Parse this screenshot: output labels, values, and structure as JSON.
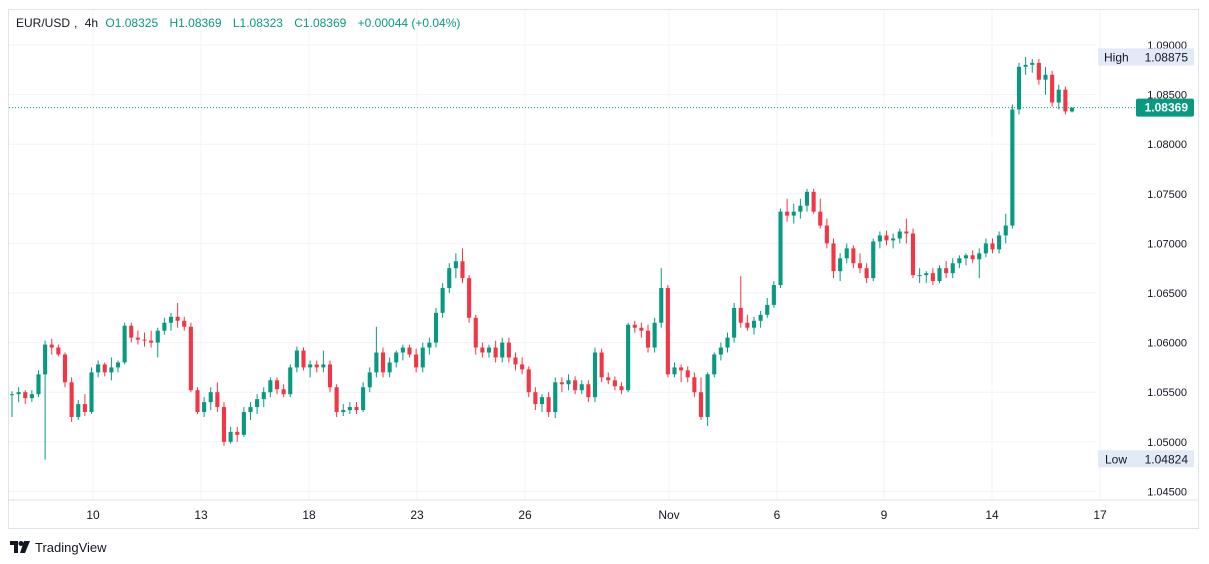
{
  "legend": {
    "symbol": "EUR/USD",
    "interval": "4h",
    "open": "O1.08325",
    "high": "H1.08369",
    "low": "L1.08323",
    "close": "C1.08369",
    "change": "+0.00044 (+0.04%)"
  },
  "brand": {
    "name": "TradingView",
    "icon": "tradingview-logo-icon"
  },
  "colors": {
    "up": "#089981",
    "down": "#f23645",
    "grid": "#f0f3fa",
    "axis_text": "#131722",
    "price_line": "#089981"
  },
  "chart_data": {
    "type": "candlestick",
    "symbol": "EUR/USD",
    "interval": "4h",
    "ylim": [
      1.0425,
      1.0925
    ],
    "y_ticks": [
      "1.09000",
      "1.08500",
      "1.08000",
      "1.07500",
      "1.07000",
      "1.06500",
      "1.06000",
      "1.05500",
      "1.05000",
      "1.04500"
    ],
    "x_ticks": [
      "10",
      "13",
      "18",
      "23",
      "26",
      "Nov",
      "6",
      "9",
      "14",
      "17"
    ],
    "price_labels": [
      {
        "label": "High",
        "value": "1.08875"
      },
      {
        "label": "",
        "value": "1.08369"
      },
      {
        "label": "Low",
        "value": "1.04824"
      }
    ],
    "last_price": 1.08369,
    "candles": [
      [
        1.0547,
        1.0551,
        1.0525,
        1.0548
      ],
      [
        1.0548,
        1.0555,
        1.054,
        1.055
      ],
      [
        1.055,
        1.0552,
        1.0538,
        1.0544
      ],
      [
        1.0544,
        1.0552,
        1.054,
        1.0548
      ],
      [
        1.0548,
        1.0572,
        1.0545,
        1.0568
      ],
      [
        1.0568,
        1.0602,
        1.0482,
        1.0598
      ],
      [
        1.0598,
        1.0604,
        1.0588,
        1.0595
      ],
      [
        1.0595,
        1.0598,
        1.0586,
        1.0588
      ],
      [
        1.0588,
        1.059,
        1.0555,
        1.056
      ],
      [
        1.056,
        1.0565,
        1.052,
        1.0525
      ],
      [
        1.0525,
        1.0542,
        1.0522,
        1.0538
      ],
      [
        1.0538,
        1.0548,
        1.0526,
        1.053
      ],
      [
        1.053,
        1.0575,
        1.0528,
        1.057
      ],
      [
        1.057,
        1.0582,
        1.0565,
        1.0578
      ],
      [
        1.0578,
        1.058,
        1.0566,
        1.057
      ],
      [
        1.057,
        1.0585,
        1.0562,
        1.0575
      ],
      [
        1.0575,
        1.0582,
        1.057,
        1.058
      ],
      [
        1.058,
        1.062,
        1.0578,
        1.0617
      ],
      [
        1.0617,
        1.062,
        1.06,
        1.0605
      ],
      [
        1.0605,
        1.0612,
        1.0598,
        1.0603
      ],
      [
        1.0603,
        1.061,
        1.0596,
        1.0602
      ],
      [
        1.0602,
        1.0612,
        1.0595,
        1.06
      ],
      [
        1.06,
        1.0615,
        1.0585,
        1.0612
      ],
      [
        1.0612,
        1.0625,
        1.0608,
        1.062
      ],
      [
        1.062,
        1.063,
        1.0612,
        1.0626
      ],
      [
        1.0626,
        1.064,
        1.0615,
        1.0622
      ],
      [
        1.0622,
        1.0626,
        1.0612,
        1.0616
      ],
      [
        1.0616,
        1.062,
        1.055,
        1.0552
      ],
      [
        1.0552,
        1.0555,
        1.0528,
        1.053
      ],
      [
        1.053,
        1.0545,
        1.0525,
        1.054
      ],
      [
        1.054,
        1.0555,
        1.0532,
        1.055
      ],
      [
        1.055,
        1.056,
        1.053,
        1.0535
      ],
      [
        1.0535,
        1.054,
        1.0496,
        1.05
      ],
      [
        1.05,
        1.0515,
        1.0498,
        1.051
      ],
      [
        1.051,
        1.0515,
        1.05,
        1.0507
      ],
      [
        1.0507,
        1.0535,
        1.0505,
        1.053
      ],
      [
        1.053,
        1.054,
        1.0522,
        1.0535
      ],
      [
        1.0535,
        1.0548,
        1.0528,
        1.0543
      ],
      [
        1.0543,
        1.0555,
        1.0535,
        1.055
      ],
      [
        1.055,
        1.0565,
        1.0545,
        1.0562
      ],
      [
        1.0562,
        1.0565,
        1.0548,
        1.0553
      ],
      [
        1.0553,
        1.0558,
        1.0545,
        1.0548
      ],
      [
        1.0548,
        1.0578,
        1.0545,
        1.0575
      ],
      [
        1.0575,
        1.0596,
        1.057,
        1.0592
      ],
      [
        1.0592,
        1.0595,
        1.0572,
        1.0575
      ],
      [
        1.0575,
        1.0582,
        1.0565,
        1.0578
      ],
      [
        1.0578,
        1.0582,
        1.057,
        1.0575
      ],
      [
        1.0575,
        1.0592,
        1.057,
        1.0578
      ],
      [
        1.0578,
        1.0582,
        1.055,
        1.0555
      ],
      [
        1.0555,
        1.0558,
        1.0525,
        1.053
      ],
      [
        1.053,
        1.0538,
        1.0526,
        1.0532
      ],
      [
        1.0532,
        1.054,
        1.0528,
        1.0535
      ],
      [
        1.0535,
        1.054,
        1.0528,
        1.0532
      ],
      [
        1.0532,
        1.056,
        1.053,
        1.0555
      ],
      [
        1.0555,
        1.0575,
        1.055,
        1.057
      ],
      [
        1.057,
        1.0616,
        1.0565,
        1.059
      ],
      [
        1.059,
        1.0595,
        1.0565,
        1.057
      ],
      [
        1.057,
        1.0585,
        1.0565,
        1.058
      ],
      [
        1.058,
        1.0592,
        1.0575,
        1.059
      ],
      [
        1.059,
        1.0598,
        1.0582,
        1.0595
      ],
      [
        1.0595,
        1.0598,
        1.0585,
        1.0588
      ],
      [
        1.0588,
        1.0594,
        1.057,
        1.0575
      ],
      [
        1.0575,
        1.06,
        1.057,
        1.0595
      ],
      [
        1.0595,
        1.0605,
        1.0588,
        1.06
      ],
      [
        1.06,
        1.0635,
        1.0595,
        1.063
      ],
      [
        1.063,
        1.066,
        1.0625,
        1.0655
      ],
      [
        1.0655,
        1.068,
        1.065,
        1.0675
      ],
      [
        1.0675,
        1.069,
        1.0665,
        1.0682
      ],
      [
        1.0682,
        1.0695,
        1.066,
        1.0665
      ],
      [
        1.0665,
        1.0668,
        1.062,
        1.0625
      ],
      [
        1.0625,
        1.0628,
        1.0588,
        1.0595
      ],
      [
        1.0595,
        1.06,
        1.0585,
        1.059
      ],
      [
        1.059,
        1.0598,
        1.0585,
        1.0595
      ],
      [
        1.0595,
        1.0602,
        1.058,
        1.0585
      ],
      [
        1.0585,
        1.0605,
        1.058,
        1.06
      ],
      [
        1.06,
        1.0605,
        1.058,
        1.0585
      ],
      [
        1.0585,
        1.059,
        1.0572,
        1.0578
      ],
      [
        1.0578,
        1.0585,
        1.0568,
        1.0573
      ],
      [
        1.0573,
        1.0576,
        1.0545,
        1.055
      ],
      [
        1.055,
        1.0555,
        1.0532,
        1.0538
      ],
      [
        1.0538,
        1.0548,
        1.053,
        1.0545
      ],
      [
        1.0545,
        1.055,
        1.0525,
        1.053
      ],
      [
        1.053,
        1.0565,
        1.0524,
        1.056
      ],
      [
        1.056,
        1.0565,
        1.055,
        1.0558
      ],
      [
        1.0558,
        1.0568,
        1.0552,
        1.0562
      ],
      [
        1.0562,
        1.0566,
        1.0548,
        1.0552
      ],
      [
        1.0552,
        1.0562,
        1.0548,
        1.0558
      ],
      [
        1.0558,
        1.0562,
        1.054,
        1.0545
      ],
      [
        1.0545,
        1.0595,
        1.054,
        1.059
      ],
      [
        1.059,
        1.0594,
        1.056,
        1.0565
      ],
      [
        1.0565,
        1.057,
        1.0558,
        1.0562
      ],
      [
        1.0562,
        1.0566,
        1.0552,
        1.0556
      ],
      [
        1.0556,
        1.056,
        1.0548,
        1.0552
      ],
      [
        1.0552,
        1.062,
        1.055,
        1.0618
      ],
      [
        1.0618,
        1.0622,
        1.061,
        1.0615
      ],
      [
        1.0615,
        1.062,
        1.0605,
        1.0612
      ],
      [
        1.0612,
        1.0618,
        1.059,
        1.0595
      ],
      [
        1.0595,
        1.0625,
        1.059,
        1.062
      ],
      [
        1.062,
        1.0675,
        1.0615,
        1.0655
      ],
      [
        1.0655,
        1.0658,
        1.0565,
        1.0568
      ],
      [
        1.0568,
        1.058,
        1.0565,
        1.0575
      ],
      [
        1.0575,
        1.0578,
        1.056,
        1.0572
      ],
      [
        1.0572,
        1.0576,
        1.056,
        1.0565
      ],
      [
        1.0565,
        1.057,
        1.0545,
        1.055
      ],
      [
        1.055,
        1.0565,
        1.0522,
        1.0525
      ],
      [
        1.0525,
        1.057,
        1.0516,
        1.0568
      ],
      [
        1.0568,
        1.059,
        1.0565,
        1.0588
      ],
      [
        1.0588,
        1.06,
        1.0582,
        1.0595
      ],
      [
        1.0595,
        1.061,
        1.059,
        1.0605
      ],
      [
        1.0605,
        1.064,
        1.06,
        1.0635
      ],
      [
        1.0635,
        1.0667,
        1.0615,
        1.062
      ],
      [
        1.062,
        1.0628,
        1.0612,
        1.0615
      ],
      [
        1.0615,
        1.0626,
        1.0608,
        1.0622
      ],
      [
        1.0622,
        1.0632,
        1.0615,
        1.0628
      ],
      [
        1.0628,
        1.0645,
        1.0625,
        1.0638
      ],
      [
        1.0638,
        1.0662,
        1.0635,
        1.0658
      ],
      [
        1.0658,
        1.0735,
        1.0655,
        1.0732
      ],
      [
        1.0732,
        1.0745,
        1.0722,
        1.0728
      ],
      [
        1.0728,
        1.074,
        1.072,
        1.0732
      ],
      [
        1.0732,
        1.0745,
        1.0725,
        1.0738
      ],
      [
        1.0738,
        1.0755,
        1.0732,
        1.0752
      ],
      [
        1.0752,
        1.0755,
        1.073,
        1.0732
      ],
      [
        1.0732,
        1.0745,
        1.0715,
        1.0718
      ],
      [
        1.0718,
        1.0725,
        1.0695,
        1.07
      ],
      [
        1.07,
        1.0705,
        1.0665,
        1.0672
      ],
      [
        1.0672,
        1.069,
        1.0662,
        1.0685
      ],
      [
        1.0685,
        1.07,
        1.068,
        1.0695
      ],
      [
        1.0695,
        1.0698,
        1.0675,
        1.068
      ],
      [
        1.068,
        1.069,
        1.067,
        1.0675
      ],
      [
        1.0675,
        1.068,
        1.066,
        1.0665
      ],
      [
        1.0665,
        1.0705,
        1.0662,
        1.0702
      ],
      [
        1.0702,
        1.0712,
        1.0695,
        1.0708
      ],
      [
        1.0708,
        1.0713,
        1.0698,
        1.0703
      ],
      [
        1.0703,
        1.071,
        1.0695,
        1.0705
      ],
      [
        1.0705,
        1.0715,
        1.07,
        1.0712
      ],
      [
        1.0712,
        1.0725,
        1.07,
        1.071
      ],
      [
        1.071,
        1.0715,
        1.0665,
        1.0668
      ],
      [
        1.0668,
        1.0675,
        1.066,
        1.0668
      ],
      [
        1.0668,
        1.0672,
        1.066,
        1.067
      ],
      [
        1.067,
        1.0675,
        1.0658,
        1.0662
      ],
      [
        1.0662,
        1.0678,
        1.066,
        1.0675
      ],
      [
        1.0675,
        1.0682,
        1.0665,
        1.067
      ],
      [
        1.067,
        1.0685,
        1.0665,
        1.068
      ],
      [
        1.068,
        1.0688,
        1.0675,
        1.0685
      ],
      [
        1.0685,
        1.069,
        1.0678,
        1.0688
      ],
      [
        1.0688,
        1.0693,
        1.068,
        1.0684
      ],
      [
        1.0684,
        1.0695,
        1.0665,
        1.069
      ],
      [
        1.069,
        1.0705,
        1.0686,
        1.07
      ],
      [
        1.07,
        1.0705,
        1.069,
        1.0694
      ],
      [
        1.0694,
        1.0712,
        1.069,
        1.0708
      ],
      [
        1.0708,
        1.073,
        1.07,
        1.0718
      ],
      [
        1.0718,
        1.084,
        1.0715,
        1.0835
      ],
      [
        1.0835,
        1.0882,
        1.083,
        1.0878
      ],
      [
        1.0878,
        1.0888,
        1.087,
        1.088
      ],
      [
        1.088,
        1.0886,
        1.0872,
        1.0882
      ],
      [
        1.0882,
        1.0886,
        1.086,
        1.0865
      ],
      [
        1.0865,
        1.0878,
        1.085,
        1.087
      ],
      [
        1.087,
        1.0874,
        1.0838,
        1.0842
      ],
      [
        1.0842,
        1.086,
        1.0835,
        1.0855
      ],
      [
        1.0855,
        1.0858,
        1.083,
        1.0833
      ],
      [
        1.0833,
        1.0837,
        1.0832,
        1.0837
      ]
    ]
  }
}
